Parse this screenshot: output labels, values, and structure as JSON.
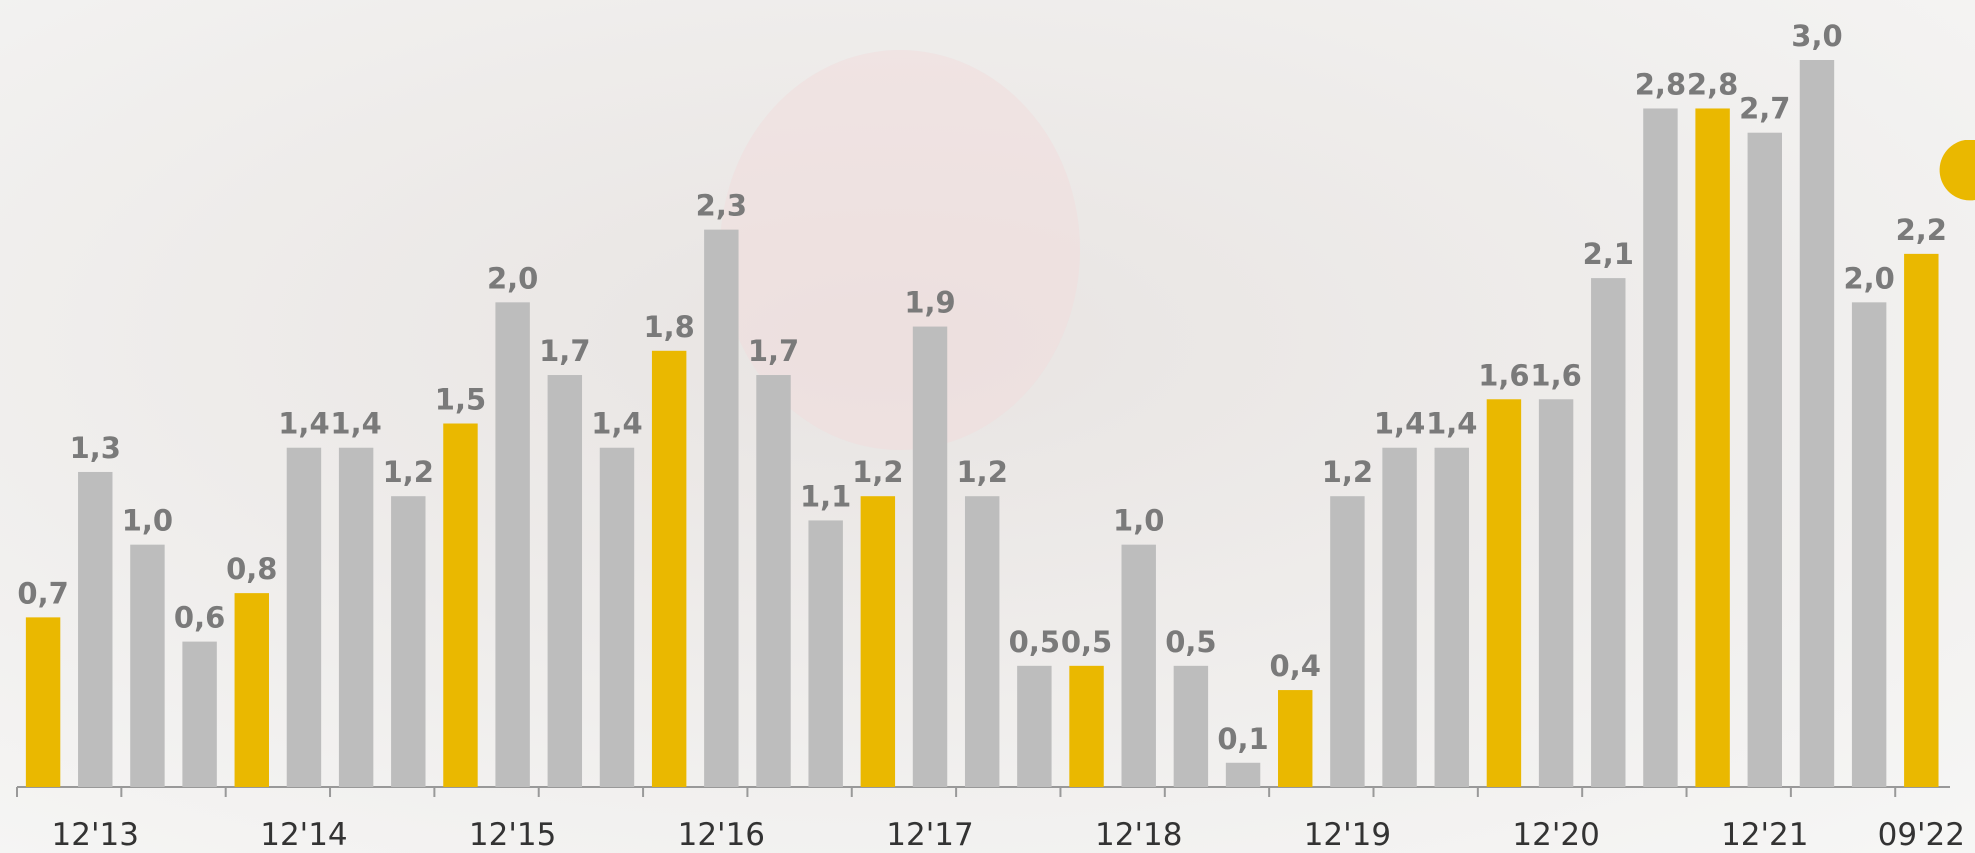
{
  "chart_data": {
    "type": "bar",
    "categories": [
      null,
      "12'13",
      null,
      null,
      null,
      "12'14",
      null,
      null,
      null,
      "12'15",
      null,
      null,
      null,
      "12'16",
      null,
      null,
      null,
      "12'17",
      null,
      null,
      null,
      "12'18",
      null,
      null,
      null,
      "12'19",
      null,
      null,
      null,
      "12'20",
      null,
      null,
      null,
      "12'21",
      null,
      null,
      "09'22"
    ],
    "values": [
      0.7,
      1.3,
      1.0,
      0.6,
      0.8,
      1.4,
      1.4,
      1.2,
      1.5,
      2.0,
      1.7,
      1.4,
      1.8,
      2.3,
      1.7,
      1.1,
      1.2,
      1.9,
      1.2,
      0.5,
      0.5,
      1.0,
      0.5,
      0.1,
      0.4,
      1.2,
      1.4,
      1.4,
      1.6,
      1.6,
      2.1,
      2.8,
      2.8,
      2.7,
      3.0,
      2.0,
      2.2
    ],
    "value_labels": [
      "0,7",
      "1,3",
      "1,0",
      "0,6",
      "0,8",
      "1,4",
      "1,4",
      "1,2",
      "1,5",
      "2,0",
      "1,7",
      "1,4",
      "1,8",
      "2,3",
      "1,7",
      "1,1",
      "1,2",
      "1,9",
      "1,2",
      "0,5",
      "0,5",
      "1,0",
      "0,5",
      "0,1",
      "0,4",
      "1,2",
      "1,4",
      "1,4",
      "1,6",
      "1,6",
      "2,1",
      "2,8",
      "2,8",
      "2,7",
      "3,0",
      "2,0",
      "2,2"
    ],
    "colors": [
      "#eab800",
      "#bdbdbd",
      "#bdbdbd",
      "#bdbdbd",
      "#eab800",
      "#bdbdbd",
      "#bdbdbd",
      "#bdbdbd",
      "#eab800",
      "#bdbdbd",
      "#bdbdbd",
      "#bdbdbd",
      "#eab800",
      "#bdbdbd",
      "#bdbdbd",
      "#bdbdbd",
      "#eab800",
      "#bdbdbd",
      "#bdbdbd",
      "#bdbdbd",
      "#eab800",
      "#bdbdbd",
      "#bdbdbd",
      "#bdbdbd",
      "#eab800",
      "#bdbdbd",
      "#bdbdbd",
      "#bdbdbd",
      "#eab800",
      "#bdbdbd",
      "#bdbdbd",
      "#bdbdbd",
      "#eab800",
      "#bdbdbd",
      "#bdbdbd",
      "#bdbdbd",
      "#eab800"
    ],
    "ylim": [
      0,
      3.0
    ]
  }
}
